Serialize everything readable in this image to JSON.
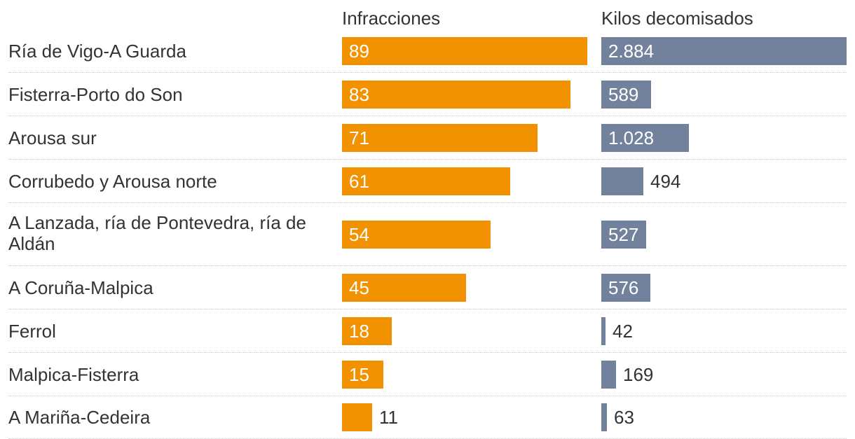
{
  "chart_data": {
    "type": "bar",
    "orientation": "horizontal",
    "categories": [
      "Ría de Vigo-A Guarda",
      "Fisterra-Porto do Son",
      "Arousa sur",
      "Corrubedo y Arousa norte",
      "A Lanzada, ría de Pontevedra, ría de Aldán",
      "A Coruña-Malpica",
      "Ferrol",
      "Malpica-Fisterra",
      "A Mariña-Cedeira"
    ],
    "series": [
      {
        "name": "Infracciones",
        "values": [
          89,
          83,
          71,
          61,
          54,
          45,
          18,
          15,
          11
        ],
        "labels": [
          "89",
          "83",
          "71",
          "61",
          "54",
          "45",
          "18",
          "15",
          "11"
        ],
        "color": "#f39200"
      },
      {
        "name": "Kilos decomisados",
        "values": [
          2884,
          589,
          1028,
          494,
          527,
          576,
          42,
          169,
          63
        ],
        "labels": [
          "2.884",
          "589",
          "1.028",
          "494",
          "527",
          "576",
          "42",
          "169",
          "63"
        ],
        "color": "#72829c"
      }
    ],
    "grid": false,
    "legend": "none"
  }
}
